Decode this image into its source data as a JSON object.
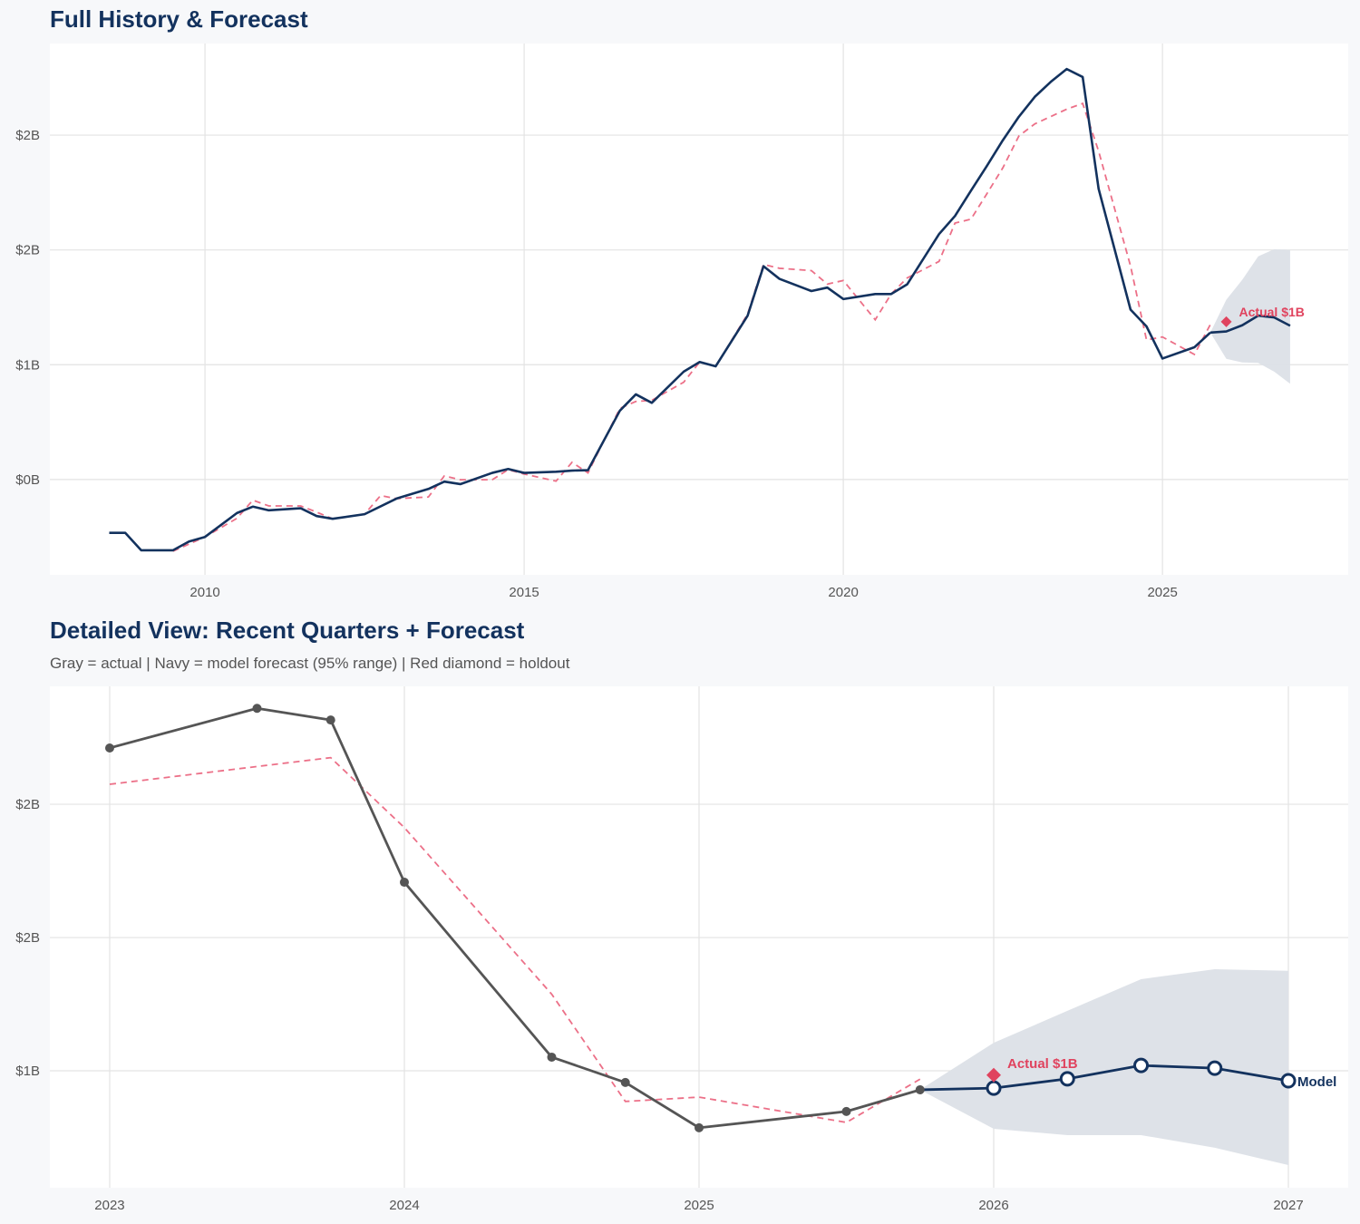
{
  "chart_data": [
    {
      "type": "line",
      "title": "Full History & Forecast",
      "xlabel": "",
      "ylabel": "",
      "xlim": [
        2007.57,
        2027.91
      ],
      "ylim": [
        0.085,
        2.399
      ],
      "grid": true,
      "x_ticks": [
        2010,
        2015,
        2020,
        2025
      ],
      "x_tick_labels": [
        "2010",
        "2015",
        "2020",
        "2025"
      ],
      "y_ticks": [
        0.5,
        1.0,
        1.5,
        2.0
      ],
      "y_tick_labels": [
        "$0B",
        "$1B",
        "$2B",
        "$2B"
      ],
      "actual": {
        "color": "#13325e",
        "x": [
          2008.5,
          2008.75,
          2009.0,
          2009.25,
          2009.5,
          2009.75,
          2010.0,
          2010.5,
          2010.75,
          2011.0,
          2011.5,
          2011.75,
          2012.0,
          2012.5,
          2013.0,
          2013.5,
          2013.75,
          2014.0,
          2014.5,
          2014.75,
          2015.0,
          2015.5,
          2015.75,
          2016.0,
          2016.5,
          2016.75,
          2017.0,
          2017.5,
          2017.75,
          2018.0,
          2018.5,
          2018.75,
          2019.0,
          2019.5,
          2019.75,
          2020.0,
          2020.5,
          2020.75,
          2021.0,
          2021.5,
          2021.75,
          2022.0,
          2022.25,
          2022.5,
          2022.75,
          2023.0,
          2023.25,
          2023.5,
          2023.75,
          2024.0,
          2024.5,
          2024.75,
          2025.0,
          2025.5,
          2025.75
        ],
        "y": [
          0.268,
          0.268,
          0.192,
          0.192,
          0.192,
          0.23,
          0.25,
          0.354,
          0.382,
          0.366,
          0.375,
          0.341,
          0.329,
          0.349,
          0.417,
          0.459,
          0.491,
          0.48,
          0.529,
          0.546,
          0.529,
          0.534,
          0.539,
          0.541,
          0.8,
          0.871,
          0.834,
          0.97,
          1.012,
          0.993,
          1.213,
          1.429,
          1.374,
          1.321,
          1.336,
          1.286,
          1.308,
          1.308,
          1.35,
          1.569,
          1.648,
          1.758,
          1.866,
          1.978,
          2.08,
          2.167,
          2.232,
          2.288,
          2.253,
          1.766,
          1.24,
          1.167,
          1.027,
          1.076,
          1.14
        ]
      },
      "fitted": {
        "color": "#ec7088",
        "x": [
          2009.5,
          2010.0,
          2010.5,
          2010.75,
          2011.0,
          2011.5,
          2011.75,
          2012.0,
          2012.5,
          2012.75,
          2013.0,
          2013.5,
          2013.75,
          2014.0,
          2014.5,
          2014.75,
          2015.0,
          2015.5,
          2015.75,
          2016.0,
          2016.5,
          2016.75,
          2017.0,
          2017.5,
          2017.75,
          2018.0,
          2018.5,
          2018.75,
          2019.0,
          2019.5,
          2019.75,
          2020.0,
          2020.5,
          2020.75,
          2021.0,
          2021.5,
          2021.75,
          2022.0,
          2022.25,
          2022.5,
          2022.75,
          2023.0,
          2023.5,
          2023.75,
          2024.0,
          2024.5,
          2024.75,
          2025.0,
          2025.5,
          2025.75
        ],
        "y": [
          0.188,
          0.25,
          0.331,
          0.41,
          0.385,
          0.385,
          0.358,
          0.329,
          0.349,
          0.43,
          0.417,
          0.424,
          0.516,
          0.499,
          0.499,
          0.543,
          0.524,
          0.493,
          0.575,
          0.529,
          0.81,
          0.84,
          0.845,
          0.924,
          1.012,
          0.993,
          1.22,
          1.437,
          1.42,
          1.41,
          1.351,
          1.367,
          1.196,
          1.308,
          1.378,
          1.45,
          1.617,
          1.634,
          1.745,
          1.858,
          1.996,
          2.049,
          2.113,
          2.138,
          1.93,
          1.43,
          1.108,
          1.121,
          1.045,
          1.175
        ]
      },
      "forecast": {
        "color": "#13325e",
        "x": [
          2025.75,
          2026.0,
          2026.25,
          2026.5,
          2026.75,
          2027.0
        ],
        "y": [
          1.14,
          1.145,
          1.172,
          1.214,
          1.206,
          1.17
        ],
        "upper": [
          1.14,
          1.283,
          1.37,
          1.472,
          1.503,
          1.5
        ],
        "lower": [
          1.14,
          1.026,
          1.01,
          1.008,
          0.97,
          0.917
        ]
      },
      "band_color": "#dce0e7",
      "holdout": {
        "x": 2026.0,
        "y": 1.187,
        "label": "Actual $1B",
        "color": "#e0435e"
      }
    },
    {
      "type": "line",
      "title": "Detailed View: Recent Quarters + Forecast",
      "subtitle": "Gray = actual  |  Navy = model forecast (95% range)  |  Red diamond = holdout",
      "xlabel": "",
      "ylabel": "",
      "xlim": [
        2022.797,
        2027.203
      ],
      "ylim": [
        0.849,
        2.354
      ],
      "grid": true,
      "x_ticks": [
        2023,
        2024,
        2025,
        2026,
        2027
      ],
      "x_tick_labels": [
        "2023",
        "2024",
        "2025",
        "2026",
        "2027"
      ],
      "y_ticks": [
        1.2,
        1.6,
        2.0
      ],
      "y_tick_labels": [
        "$1B",
        "$2B",
        "$2B"
      ],
      "actual": {
        "color": "#555555",
        "x": [
          2023.0,
          2023.5,
          2023.75,
          2024.0,
          2024.5,
          2024.75,
          2025.0,
          2025.5,
          2025.75
        ],
        "y": [
          2.169,
          2.288,
          2.253,
          1.766,
          1.241,
          1.165,
          1.029,
          1.078,
          1.143
        ]
      },
      "fitted": {
        "color": "#ec7088",
        "x": [
          2023.0,
          2023.75,
          2024.0,
          2024.5,
          2024.75,
          2025.0,
          2025.5,
          2025.75
        ],
        "y": [
          2.06,
          2.14,
          1.93,
          1.43,
          1.108,
          1.121,
          1.045,
          1.175
        ]
      },
      "forecast": {
        "color": "#13325e",
        "end_label": "Model",
        "x": [
          2025.75,
          2026.0,
          2026.25,
          2026.5,
          2026.75,
          2027.0
        ],
        "y": [
          1.143,
          1.148,
          1.176,
          1.216,
          1.208,
          1.17
        ],
        "upper": [
          1.143,
          1.284,
          1.38,
          1.475,
          1.505,
          1.5
        ],
        "lower": [
          1.143,
          1.026,
          1.007,
          1.007,
          0.969,
          0.917
        ]
      },
      "band_color": "#dce0e7",
      "holdout": {
        "x": 2026.0,
        "y": 1.187,
        "label": "Actual $1B",
        "color": "#e0435e"
      }
    }
  ]
}
